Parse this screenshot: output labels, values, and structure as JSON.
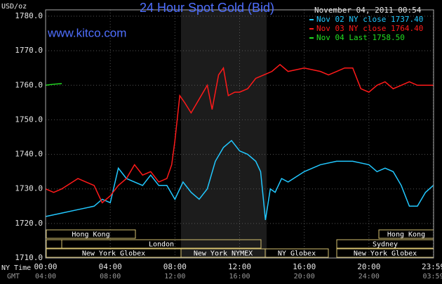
{
  "chart_data": {
    "type": "line",
    "title": "24 Hour Spot Gold (Bid)",
    "y_label": "USD/oz",
    "timestamp": "November 04, 2011 00:54",
    "site": "www.kitco.com",
    "x_row_labels": [
      "NY Time",
      "GMT"
    ],
    "xlim": [
      0,
      24
    ],
    "ylim": [
      1710,
      1780
    ],
    "xticks": [
      {
        "value": 0,
        "label": "00:00"
      },
      {
        "value": 4,
        "label": "04:00"
      },
      {
        "value": 8,
        "label": "08:00"
      },
      {
        "value": 12,
        "label": "12:00"
      },
      {
        "value": 16,
        "label": "16:00"
      },
      {
        "value": 20,
        "label": "20:00"
      },
      {
        "value": 23.98,
        "label": "23:59"
      }
    ],
    "gmt_labels": [
      "04:00",
      "08:00",
      "12:00",
      "16:00",
      "20:00",
      "24:00",
      "03:59"
    ],
    "yticks": [
      {
        "value": 1710,
        "label": "1710.0"
      },
      {
        "value": 1720,
        "label": "1720.0"
      },
      {
        "value": 1730,
        "label": "1730.0"
      },
      {
        "value": 1740,
        "label": "1740.0"
      },
      {
        "value": 1750,
        "label": "1750.0"
      },
      {
        "value": 1760,
        "label": "1760.0"
      },
      {
        "value": 1770,
        "label": "1770.0"
      },
      {
        "value": 1780,
        "label": "1780.0"
      }
    ],
    "grid": true,
    "sessions": [
      "Hong Kong",
      "Hong Kong",
      "London",
      "Sydney",
      "New York Globex",
      "New York NYMEX",
      "NY Globex",
      "New York Globex"
    ],
    "series": [
      {
        "name": "Nov 02 NY close 1737.40",
        "color": "#22c8ff",
        "x": [
          0,
          1,
          2,
          3,
          3.5,
          4,
          4.5,
          5,
          6,
          6.5,
          7,
          7.5,
          8,
          8.5,
          9,
          9.5,
          10,
          10.5,
          11,
          11.5,
          12,
          12.5,
          13,
          13.3,
          13.6,
          13.9,
          14.2,
          14.6,
          15,
          16,
          17,
          18,
          19,
          20,
          20.5,
          21,
          21.5,
          22,
          22.5,
          23,
          23.5,
          23.98
        ],
        "values": [
          1722,
          1723,
          1724,
          1725,
          1727,
          1726,
          1736,
          1733,
          1731,
          1734,
          1731,
          1731,
          1727,
          1732,
          1729,
          1727,
          1730,
          1738,
          1742,
          1744,
          1741,
          1740,
          1738,
          1735,
          1721,
          1730,
          1729,
          1733,
          1732,
          1735,
          1737,
          1738,
          1738,
          1737,
          1735,
          1736,
          1735,
          1731,
          1725,
          1725,
          1729,
          1731
        ]
      },
      {
        "name": "Nov 03 NY close 1764.40",
        "color": "#ff1a1a",
        "x": [
          0,
          0.5,
          1,
          2,
          2.5,
          3,
          3.5,
          4,
          4.5,
          5,
          5.5,
          6,
          6.5,
          7,
          7.5,
          7.8,
          8,
          8.3,
          8.6,
          9,
          9.5,
          10,
          10.3,
          10.7,
          11,
          11.3,
          11.7,
          12,
          12.5,
          13,
          13.5,
          14,
          14.5,
          15,
          16,
          17,
          17.5,
          18,
          18.5,
          19,
          19.5,
          20,
          20.5,
          21,
          21.5,
          22,
          22.5,
          23,
          23.98
        ],
        "values": [
          1730,
          1729,
          1730,
          1733,
          1732,
          1731,
          1726,
          1728,
          1731,
          1733,
          1737,
          1734,
          1735,
          1732,
          1733,
          1737,
          1744,
          1757,
          1755,
          1752,
          1756,
          1760,
          1753,
          1763,
          1765,
          1757,
          1758,
          1758,
          1759,
          1762,
          1763,
          1764,
          1766,
          1764,
          1765,
          1764,
          1763,
          1764,
          1765,
          1765,
          1759,
          1758,
          1760,
          1761,
          1759,
          1760,
          1761,
          1760,
          1760
        ]
      },
      {
        "name": "Nov 04 Last 1758.50",
        "color": "#22dd22",
        "x": [
          0,
          0.5,
          1
        ],
        "values": [
          1760,
          1760.3,
          1760.5
        ]
      }
    ]
  }
}
